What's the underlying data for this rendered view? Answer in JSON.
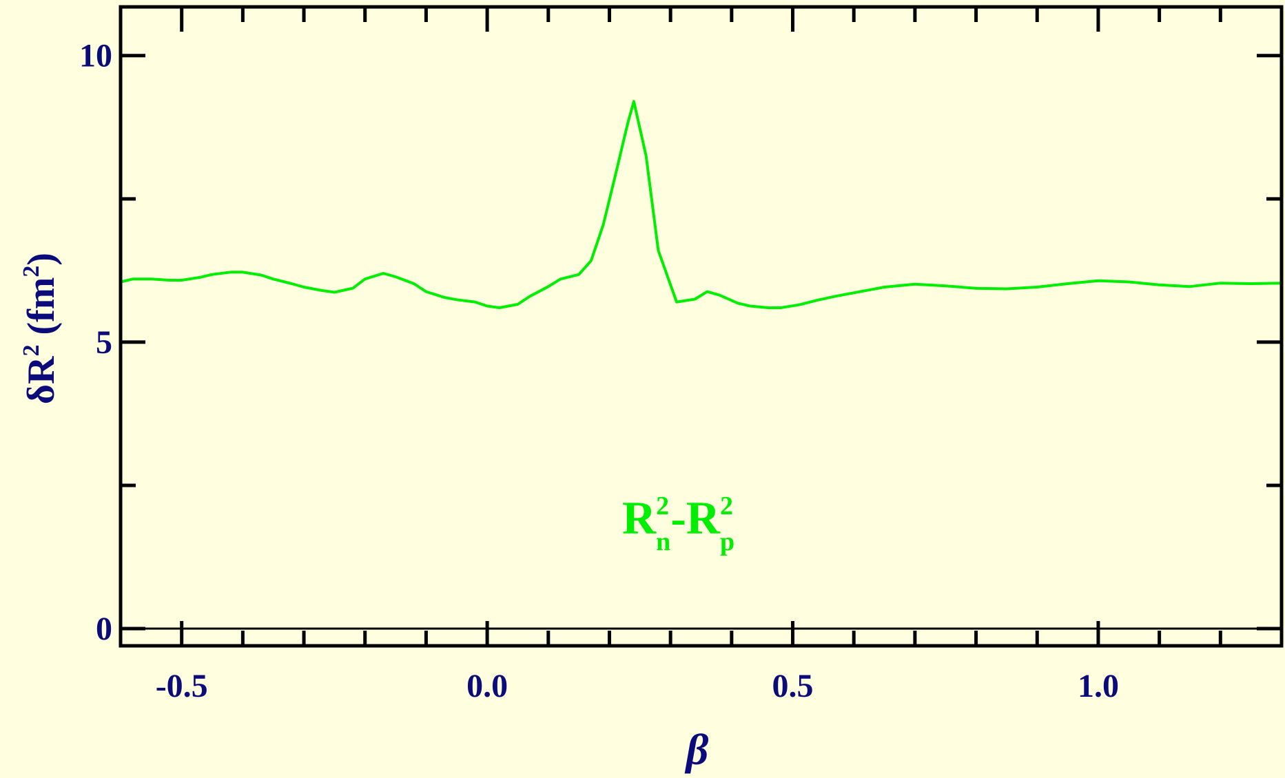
{
  "chart_data": {
    "type": "line",
    "xlabel": "β",
    "ylabel": {
      "prefix": "δR",
      "sup": "2",
      "unit_open": " (fm",
      "unit_sup": "2",
      "unit_close": ")"
    },
    "annotation": {
      "part1": "R",
      "part1_sup": "2",
      "part1_sub": "n",
      "dash": "-R",
      "part2_sup": "2",
      "part2_sub": "p"
    },
    "xlim": [
      -0.6,
      1.3
    ],
    "ylim": [
      -0.3,
      10.85
    ],
    "x_ticks": [
      -0.5,
      0.0,
      0.5,
      1.0
    ],
    "x_tick_labels": [
      "-0.5",
      "0.0",
      "0.5",
      "1.0"
    ],
    "y_ticks": [
      0,
      5,
      10
    ],
    "y_tick_labels": [
      "0",
      "5",
      "10"
    ],
    "x_minor_step": 0.1,
    "y_minor_step": 2.5,
    "zero_line": true,
    "grid": false,
    "colors": {
      "background": "#ffffe0",
      "axis": "#000000",
      "text": "#0b0b7a",
      "series": "#00ee00"
    },
    "series": [
      {
        "x": [
          -0.6,
          -0.58,
          -0.55,
          -0.52,
          -0.5,
          -0.47,
          -0.45,
          -0.42,
          -0.4,
          -0.37,
          -0.35,
          -0.32,
          -0.3,
          -0.27,
          -0.25,
          -0.22,
          -0.2,
          -0.17,
          -0.15,
          -0.12,
          -0.1,
          -0.07,
          -0.05,
          -0.02,
          0.0,
          0.02,
          0.05,
          0.07,
          0.1,
          0.12,
          0.15,
          0.17,
          0.19,
          0.21,
          0.23,
          0.24,
          0.26,
          0.28,
          0.31,
          0.34,
          0.36,
          0.38,
          0.41,
          0.43,
          0.46,
          0.48,
          0.51,
          0.54,
          0.57,
          0.6,
          0.65,
          0.7,
          0.75,
          0.8,
          0.85,
          0.9,
          0.95,
          1.0,
          1.05,
          1.1,
          1.15,
          1.2,
          1.25,
          1.3
        ],
        "y": [
          6.05,
          6.1,
          6.1,
          6.08,
          6.08,
          6.13,
          6.18,
          6.22,
          6.22,
          6.17,
          6.1,
          6.02,
          5.96,
          5.9,
          5.87,
          5.94,
          6.1,
          6.2,
          6.14,
          6.02,
          5.88,
          5.78,
          5.74,
          5.7,
          5.63,
          5.6,
          5.66,
          5.8,
          5.97,
          6.1,
          6.18,
          6.42,
          7.05,
          7.92,
          8.82,
          9.2,
          8.25,
          6.6,
          5.7,
          5.75,
          5.88,
          5.82,
          5.68,
          5.63,
          5.6,
          5.6,
          5.65,
          5.73,
          5.8,
          5.86,
          5.96,
          6.01,
          5.98,
          5.94,
          5.93,
          5.96,
          6.02,
          6.07,
          6.05,
          6.0,
          5.97,
          6.03,
          6.02,
          6.03
        ]
      }
    ]
  }
}
